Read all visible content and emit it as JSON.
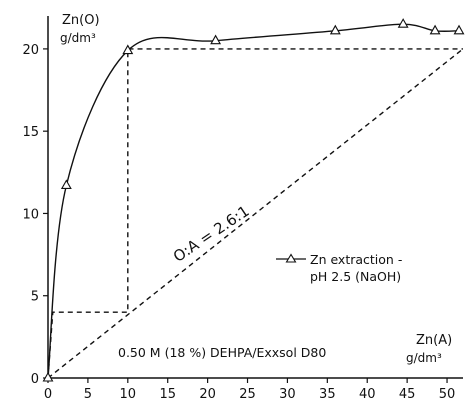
{
  "chart_data": {
    "type": "line",
    "y_axis_label": {
      "line1": "Zn(O)",
      "line2": "g/dm³"
    },
    "x_axis_label": {
      "line1": "Zn(A)",
      "line2": "g/dm³"
    },
    "xlim": [
      0,
      52
    ],
    "ylim": [
      0,
      22
    ],
    "x_ticks": [
      0,
      5,
      10,
      15,
      20,
      25,
      30,
      35,
      40,
      45,
      50
    ],
    "y_ticks": [
      0,
      5,
      10,
      15,
      20
    ],
    "grid": false,
    "legend": {
      "position": "center-right",
      "entries": [
        "Zn extraction -",
        "pH 2.5 (NaOH)"
      ]
    },
    "series": [
      {
        "name": "Zn extraction - pH 2.5 (NaOH)",
        "marker": "triangle",
        "points": [
          {
            "x": 0,
            "y": 0
          },
          {
            "x": 2.3,
            "y": 11.7
          },
          {
            "x": 10,
            "y": 19.9
          },
          {
            "x": 21,
            "y": 20.5
          },
          {
            "x": 36,
            "y": 21.1
          },
          {
            "x": 44.5,
            "y": 21.5
          },
          {
            "x": 48.5,
            "y": 21.1
          },
          {
            "x": 51.5,
            "y": 21.1
          }
        ]
      }
    ],
    "operating_line": {
      "x": [
        0,
        52
      ],
      "y": [
        0,
        20
      ]
    },
    "mccabe_thiele_steps": [
      {
        "x": [
          0,
          0.6,
          10,
          10,
          52
        ],
        "y": [
          0,
          4,
          4,
          20,
          20
        ]
      }
    ],
    "annotations": {
      "operating_line_label": "O:A = 2.6:1",
      "system_label": "0.50 M (18 %) DEHPA/Exxsol D80"
    }
  }
}
